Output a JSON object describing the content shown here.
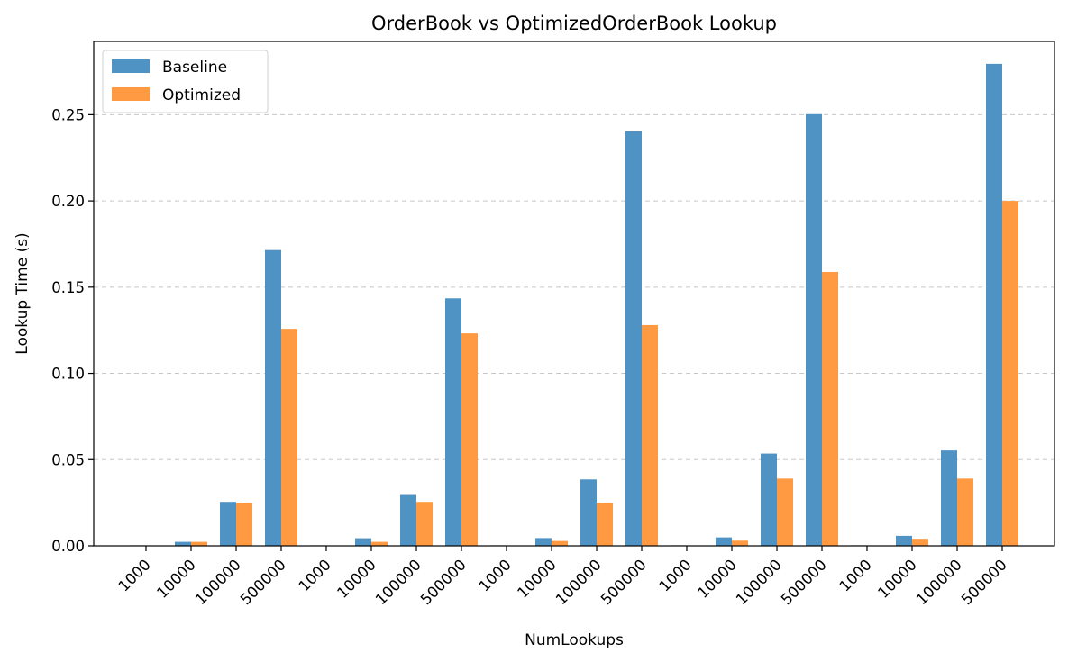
{
  "chart_data": {
    "type": "bar",
    "title": "OrderBook vs OptimizedOrderBook Lookup",
    "xlabel": "NumLookups",
    "ylabel": "Lookup Time (s)",
    "ylim": [
      0,
      0.2925
    ],
    "yticks": [
      "0.00",
      "0.05",
      "0.10",
      "0.15",
      "0.20",
      "0.25"
    ],
    "grid": "y",
    "legend_position": "upper-left",
    "categories": [
      "1000",
      "10000",
      "100000",
      "500000",
      "1000",
      "10000",
      "100000",
      "500000",
      "1000",
      "10000",
      "100000",
      "500000",
      "1000",
      "10000",
      "100000",
      "500000",
      "1000",
      "10000",
      "100000",
      "500000"
    ],
    "series": [
      {
        "name": "Baseline",
        "color": "#4f93c4",
        "values": [
          0.0003,
          0.0023,
          0.0255,
          0.1715,
          0.0003,
          0.0044,
          0.0295,
          0.1435,
          0.0003,
          0.0045,
          0.0385,
          0.2403,
          0.0003,
          0.0049,
          0.0535,
          0.2503,
          0.0003,
          0.0058,
          0.0553,
          0.2795
        ]
      },
      {
        "name": "Optimized",
        "color": "#ff9a43",
        "values": [
          0.0002,
          0.0023,
          0.025,
          0.1258,
          0.0002,
          0.0023,
          0.0255,
          0.1232,
          0.0002,
          0.0028,
          0.025,
          0.128,
          0.0002,
          0.003,
          0.039,
          0.1588,
          0.0002,
          0.0041,
          0.039,
          0.2
        ]
      }
    ]
  }
}
